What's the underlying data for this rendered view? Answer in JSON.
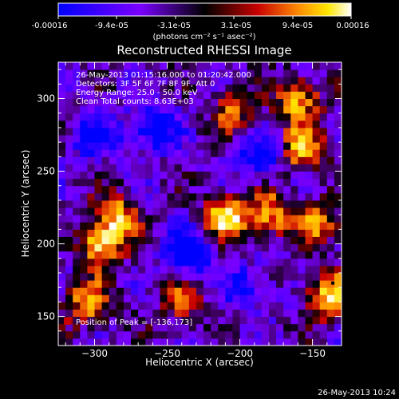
{
  "colorbar": {
    "tick_labels": [
      "-0.00016",
      "-9.4e-05",
      "-3.1e-05",
      "3.1e-05",
      "9.4e-05",
      "0.00016"
    ],
    "unit_label": "(photons cm⁻² s⁻¹ asec⁻²)"
  },
  "plot": {
    "annotations": [
      "26-May-2013 01:15:16.000 to 01:20:42.000",
      "Detectors: 3F 5F 6F 7F 8F 9F, Att 0",
      "Energy Range: 25.0 - 50.0 keV",
      "Clean     Total counts: 8.63E+03"
    ],
    "peak_label": "Position of Peak = [-136,173]"
  },
  "footer": {
    "timestamp": "26-May-2013 10:24"
  },
  "colors": {
    "background": "#000000",
    "text": "#ffffff"
  },
  "chart_data": {
    "type": "heatmap",
    "title": "Reconstructed RHESSI Image",
    "xlabel": "Heliocentric X (arcsec)",
    "ylabel": "Heliocentric Y (arcsec)",
    "xlim": [
      -325,
      -130
    ],
    "ylim": [
      130,
      325
    ],
    "xticks": [
      -300,
      -250,
      -200,
      -150
    ],
    "yticks": [
      150,
      200,
      250,
      300
    ],
    "colormap": "blue-purple-black-red-yellow-white",
    "color_range": [
      -0.00016,
      0.00016
    ],
    "peak": [
      -136,
      173
    ],
    "bright_sources": [
      {
        "x": -295,
        "y": 200,
        "level": 1.0
      },
      {
        "x": -305,
        "y": 160,
        "level": 0.8
      },
      {
        "x": -285,
        "y": 220,
        "level": 0.75
      },
      {
        "x": -210,
        "y": 218,
        "level": 1.0
      },
      {
        "x": -180,
        "y": 220,
        "level": 0.85
      },
      {
        "x": -158,
        "y": 265,
        "level": 0.9
      },
      {
        "x": -160,
        "y": 300,
        "level": 0.85
      },
      {
        "x": -205,
        "y": 292,
        "level": 0.6
      },
      {
        "x": -145,
        "y": 215,
        "level": 0.7
      },
      {
        "x": -138,
        "y": 165,
        "level": 1.0
      },
      {
        "x": -240,
        "y": 160,
        "level": 0.55
      }
    ],
    "dim_sources": [
      {
        "x": -260,
        "y": 280,
        "level": -0.8
      },
      {
        "x": -235,
        "y": 195,
        "level": -0.9
      },
      {
        "x": -185,
        "y": 260,
        "level": -0.7
      },
      {
        "x": -300,
        "y": 275,
        "level": -0.6
      },
      {
        "x": -195,
        "y": 170,
        "level": -0.5
      }
    ]
  }
}
